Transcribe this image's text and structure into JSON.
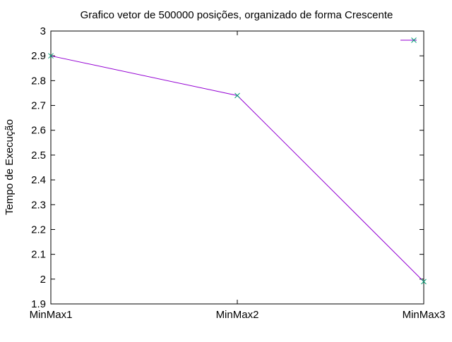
{
  "chart_data": {
    "type": "line",
    "title": "Grafico vetor de 500000 posições, organizado de forma Crescente",
    "xlabel": "",
    "ylabel": "Tempo de Execução",
    "categories": [
      "MinMax1",
      "MinMax2",
      "MinMax3"
    ],
    "series": [
      {
        "values": [
          2.9,
          2.74,
          1.99
        ],
        "color": "#9400d3",
        "marker_color": "#009e73"
      }
    ],
    "ylim": [
      1.9,
      3.0
    ],
    "yticks": [
      "1.9",
      "2",
      "2.1",
      "2.2",
      "2.3",
      "2.4",
      "2.5",
      "2.6",
      "2.7",
      "2.8",
      "2.9",
      "3"
    ],
    "grid": false,
    "legend": "top-right"
  }
}
